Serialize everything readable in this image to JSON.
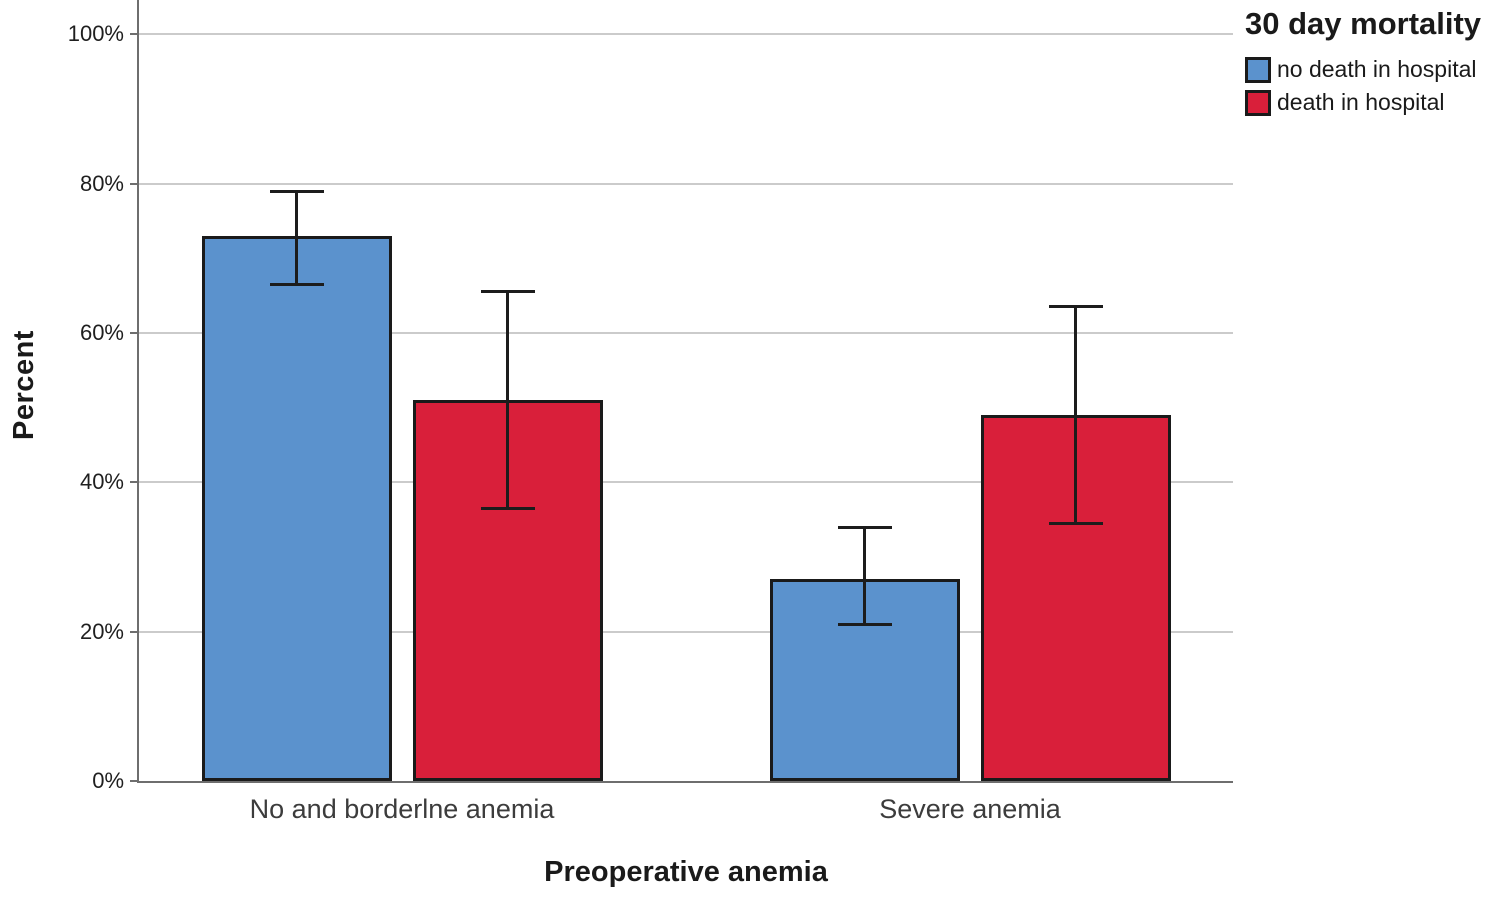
{
  "chart_data": {
    "type": "bar",
    "title": "",
    "xlabel": "Preoperative anemia",
    "ylabel": "Percent",
    "legend": {
      "title": "30 day mortality",
      "position": "top-right-outside"
    },
    "categories": [
      "No and borderlne anemia",
      "Severe anemia"
    ],
    "series": [
      {
        "name": "no death in hospital",
        "color": "#5B92CD",
        "values": [
          73,
          27
        ],
        "error_low": [
          66.5,
          21
        ],
        "error_high": [
          79,
          34
        ]
      },
      {
        "name": "death in hospital",
        "color": "#D91F3A",
        "values": [
          51,
          49
        ],
        "error_low": [
          36.5,
          34.5
        ],
        "error_high": [
          65.5,
          63.5
        ]
      }
    ],
    "y_ticks": [
      {
        "value": 0,
        "label": "0%"
      },
      {
        "value": 20,
        "label": "20%"
      },
      {
        "value": 40,
        "label": "40%"
      },
      {
        "value": 60,
        "label": "60%"
      },
      {
        "value": 80,
        "label": "80%"
      },
      {
        "value": 100,
        "label": "100%"
      }
    ],
    "ylim": [
      0,
      104.6
    ],
    "grid": true,
    "error_bars": true,
    "colors": {
      "axis": "#6e6e6e",
      "gridline": "#cbcbcb",
      "error_bar": "#1c1c1c",
      "bar_border": "#1a1a1a"
    }
  }
}
